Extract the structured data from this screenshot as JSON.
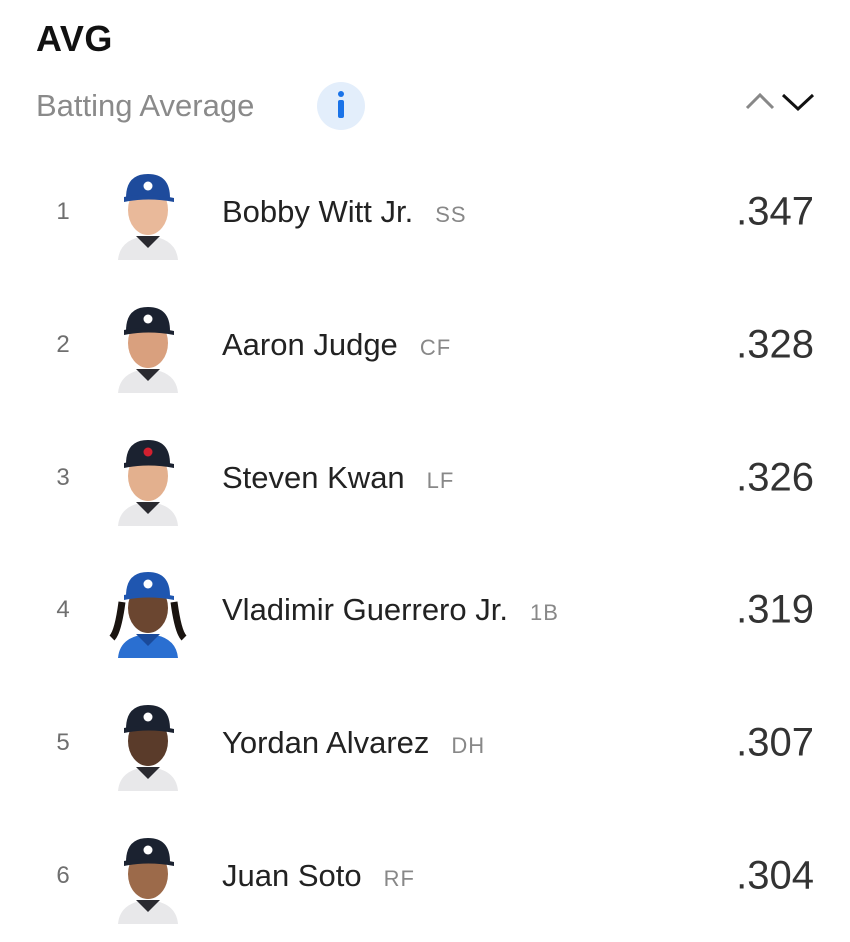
{
  "header": {
    "title": "AVG",
    "subtitle": "Batting Average"
  },
  "rows": [
    {
      "rank": 1,
      "name": "Bobby Witt Jr.",
      "position": "SS",
      "value": ".347"
    },
    {
      "rank": 2,
      "name": "Aaron Judge",
      "position": "CF",
      "value": ".328"
    },
    {
      "rank": 3,
      "name": "Steven Kwan",
      "position": "LF",
      "value": ".326"
    },
    {
      "rank": 4,
      "name": "Vladimir Guerrero Jr.",
      "position": "1B",
      "value": ".319"
    },
    {
      "rank": 5,
      "name": "Yordan Alvarez",
      "position": "DH",
      "value": ".307"
    },
    {
      "rank": 6,
      "name": "Juan Soto",
      "position": "RF",
      "value": ".304"
    }
  ]
}
